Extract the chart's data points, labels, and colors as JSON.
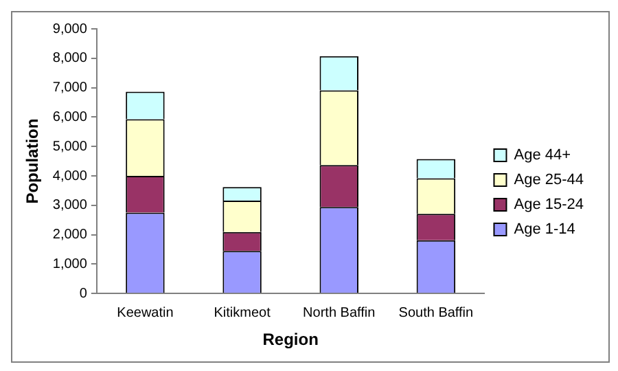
{
  "chart_data": {
    "type": "bar",
    "stacked": true,
    "xlabel": "Region",
    "ylabel": "Population",
    "categories": [
      "Keewatin",
      "Kitikmeot",
      "North Baffin",
      "South Baffin"
    ],
    "series": [
      {
        "name": "Age 1-14",
        "color": "#9999ff",
        "values": [
          2750,
          1450,
          2940,
          1810
        ]
      },
      {
        "name": "Age 15-24",
        "color": "#993366",
        "values": [
          1250,
          640,
          1430,
          900
        ]
      },
      {
        "name": "Age 25-44",
        "color": "#ffffcc",
        "values": [
          1930,
          1070,
          2540,
          1210
        ]
      },
      {
        "name": "Age 44+",
        "color": "#ccffff",
        "values": [
          930,
          460,
          1160,
          650
        ]
      }
    ],
    "ylim": [
      0,
      9000
    ],
    "yticks": [
      0,
      {
        "value": 1000,
        "label": "1,000"
      },
      {
        "value": 2000,
        "label": "2,000"
      },
      {
        "value": 3000,
        "label": "3,000"
      },
      {
        "value": 4000,
        "label": "4,000"
      },
      {
        "value": 5000,
        "label": "5,000"
      },
      {
        "value": 6000,
        "label": "6,000"
      },
      {
        "value": 7000,
        "label": "7,000"
      },
      {
        "value": 8000,
        "label": "8,000"
      },
      {
        "value": 9000,
        "label": "9,000"
      }
    ],
    "grid": false,
    "legend": "right"
  }
}
